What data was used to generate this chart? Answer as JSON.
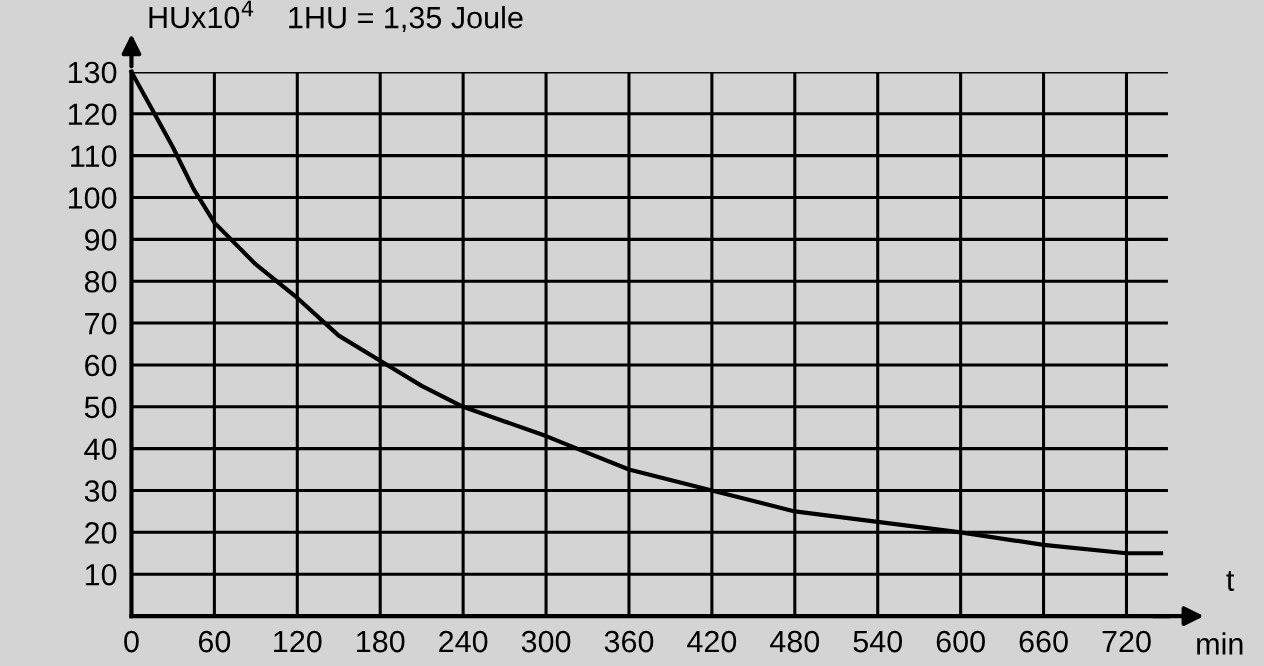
{
  "chart_data": {
    "type": "line",
    "ylabel": "HUx10$^{4}$",
    "xlabel": "t",
    "annotations": [
      "1HU = 1,35 Joule",
      "min"
    ],
    "x": [
      0,
      15,
      30,
      45,
      60,
      90,
      120,
      150,
      180,
      210,
      240,
      270,
      300,
      330,
      360,
      390,
      420,
      480,
      540,
      600,
      660,
      720,
      745
    ],
    "series": [
      {
        "color": "#000000",
        "values": [
          130,
          121,
          112,
          102,
          94,
          84,
          76,
          67,
          61,
          55,
          50,
          46.5,
          43,
          39,
          35,
          32.5,
          30,
          25,
          22.5,
          20,
          17,
          15,
          15
        ]
      }
    ],
    "xlim": [
      0,
      750
    ],
    "ylim": [
      0,
      130
    ],
    "xticks": [
      0,
      60,
      120,
      180,
      240,
      300,
      360,
      420,
      480,
      540,
      600,
      660,
      720
    ],
    "yticks": [
      10,
      20,
      30,
      40,
      50,
      60,
      70,
      80,
      90,
      100,
      110,
      120,
      130
    ],
    "grid": true,
    "marker": "none",
    "line_style": "solid",
    "legend": false
  }
}
